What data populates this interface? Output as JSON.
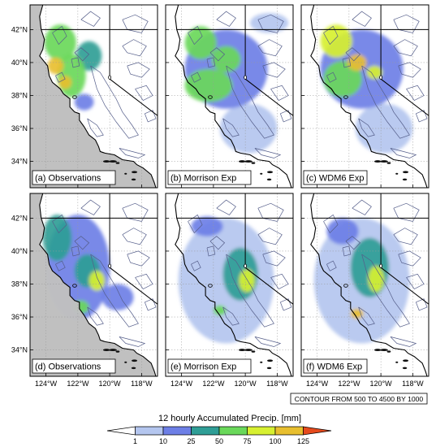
{
  "chart_data": {
    "type": "heatmap",
    "panels": [
      {
        "label": "(a) Observations",
        "row": 0,
        "col": 0,
        "land": "gray",
        "blobs": [
          {
            "lon": -123.1,
            "lat": 41.2,
            "rx": 1.0,
            "ry": 1.1,
            "v": 70
          },
          {
            "lon": -122.4,
            "lat": 39.2,
            "rx": 0.9,
            "ry": 1.3,
            "v": 60
          },
          {
            "lon": -123.4,
            "lat": 39.8,
            "rx": 0.5,
            "ry": 0.5,
            "v": 110
          },
          {
            "lon": -122.8,
            "lat": 38.8,
            "rx": 0.4,
            "ry": 0.4,
            "v": 105
          },
          {
            "lon": -121.3,
            "lat": 40.4,
            "rx": 0.8,
            "ry": 0.9,
            "v": 30
          },
          {
            "lon": -121.6,
            "lat": 37.6,
            "rx": 0.6,
            "ry": 0.5,
            "v": 18
          }
        ]
      },
      {
        "label": "(b) Morrison Exp",
        "row": 0,
        "col": 1,
        "land": "white",
        "blobs": [
          {
            "lon": -121.2,
            "lat": 39.6,
            "rx": 2.6,
            "ry": 2.4,
            "v": 12
          },
          {
            "lon": -122.3,
            "lat": 38.6,
            "rx": 1.5,
            "ry": 1.0,
            "v": 55
          },
          {
            "lon": -122.8,
            "lat": 41.2,
            "rx": 1.0,
            "ry": 1.0,
            "v": 60
          },
          {
            "lon": -121.2,
            "lat": 40.2,
            "rx": 0.9,
            "ry": 0.8,
            "v": 65
          },
          {
            "lon": -119.8,
            "lat": 36.0,
            "rx": 1.8,
            "ry": 1.5,
            "v": 8
          },
          {
            "lon": -118.5,
            "lat": 42.4,
            "rx": 1.2,
            "ry": 0.6,
            "v": 6
          }
        ]
      },
      {
        "label": "(c) WDM6 Exp",
        "row": 0,
        "col": 2,
        "land": "white",
        "blobs": [
          {
            "lon": -121.2,
            "lat": 39.6,
            "rx": 2.6,
            "ry": 2.4,
            "v": 12
          },
          {
            "lon": -122.4,
            "lat": 39.0,
            "rx": 1.2,
            "ry": 1.1,
            "v": 70
          },
          {
            "lon": -122.8,
            "lat": 41.3,
            "rx": 1.0,
            "ry": 1.0,
            "v": 75
          },
          {
            "lon": -121.5,
            "lat": 40.0,
            "rx": 0.6,
            "ry": 0.5,
            "v": 110
          },
          {
            "lon": -120.4,
            "lat": 39.4,
            "rx": 0.5,
            "ry": 0.4,
            "v": 95
          },
          {
            "lon": -119.8,
            "lat": 36.0,
            "rx": 1.8,
            "ry": 1.5,
            "v": 8
          }
        ]
      },
      {
        "label": "(d) Observations",
        "row": 1,
        "col": 0,
        "land": "gray",
        "blobs": [
          {
            "lon": -122.0,
            "lat": 39.0,
            "rx": 2.0,
            "ry": 3.2,
            "v": 14
          },
          {
            "lon": -123.3,
            "lat": 40.8,
            "rx": 0.9,
            "ry": 1.4,
            "v": 35
          },
          {
            "lon": -121.4,
            "lat": 38.8,
            "rx": 0.8,
            "ry": 1.0,
            "v": 45
          },
          {
            "lon": -120.8,
            "lat": 38.2,
            "rx": 0.5,
            "ry": 0.6,
            "v": 80
          },
          {
            "lon": -121.8,
            "lat": 36.6,
            "rx": 0.5,
            "ry": 0.4,
            "v": 60
          },
          {
            "lon": -119.5,
            "lat": 37.2,
            "rx": 1.0,
            "ry": 0.8,
            "v": 10
          }
        ]
      },
      {
        "label": "(e) Morrison Exp",
        "row": 1,
        "col": 1,
        "land": "white",
        "blobs": [
          {
            "lon": -121.2,
            "lat": 38.2,
            "rx": 3.0,
            "ry": 3.8,
            "v": 7
          },
          {
            "lon": -120.3,
            "lat": 38.6,
            "rx": 1.1,
            "ry": 1.6,
            "v": 40
          },
          {
            "lon": -119.9,
            "lat": 38.2,
            "rx": 0.5,
            "ry": 0.7,
            "v": 80
          },
          {
            "lon": -122.4,
            "lat": 41.5,
            "rx": 1.0,
            "ry": 0.6,
            "v": 20
          },
          {
            "lon": -121.6,
            "lat": 36.4,
            "rx": 0.4,
            "ry": 0.3,
            "v": 55
          }
        ]
      },
      {
        "label": "(f) WDM6 Exp",
        "row": 1,
        "col": 2,
        "land": "white",
        "blobs": [
          {
            "lon": -121.2,
            "lat": 38.2,
            "rx": 3.0,
            "ry": 3.8,
            "v": 8
          },
          {
            "lon": -120.7,
            "lat": 39.0,
            "rx": 1.2,
            "ry": 1.8,
            "v": 45
          },
          {
            "lon": -120.3,
            "lat": 38.3,
            "rx": 0.5,
            "ry": 0.8,
            "v": 90
          },
          {
            "lon": -122.4,
            "lat": 41.2,
            "rx": 1.0,
            "ry": 0.8,
            "v": 22
          },
          {
            "lon": -121.5,
            "lat": 36.2,
            "rx": 0.4,
            "ry": 0.3,
            "v": 110
          }
        ]
      }
    ],
    "lon_range": [
      -125,
      -117
    ],
    "lat_range": [
      32.4,
      43.5
    ],
    "x_ticks": [
      "124°W",
      "122°W",
      "120°W",
      "118°W"
    ],
    "x_tick_values": [
      -124,
      -122,
      -120,
      -118
    ],
    "y_ticks": [
      "42°N",
      "40°N",
      "38°N",
      "36°N",
      "34°N"
    ],
    "y_tick_values": [
      42,
      40,
      38,
      36,
      34
    ],
    "colorbar": {
      "title": "12 hourly Accumulated Precip.  [mm]",
      "levels": [
        1,
        10,
        25,
        50,
        75,
        100,
        125
      ],
      "colors": [
        "#ffffff",
        "#b4c6ef",
        "#6d7fe6",
        "#2f9e96",
        "#6ad85a",
        "#d7f031",
        "#e8bf2f",
        "#e54a1d"
      ],
      "tick_labels": [
        "1",
        "10",
        "25",
        "50",
        "75",
        "100",
        "125"
      ],
      "tick_values": [
        1,
        10,
        25,
        50,
        75,
        100,
        125
      ]
    },
    "contour_note": "CONTOUR FROM 500 TO 4500 BY 1000",
    "grid": true
  },
  "colors": {
    "land_gray": "#c0c0c0",
    "frame": "#000000",
    "border": "#000000",
    "contour": "#555e8a"
  }
}
